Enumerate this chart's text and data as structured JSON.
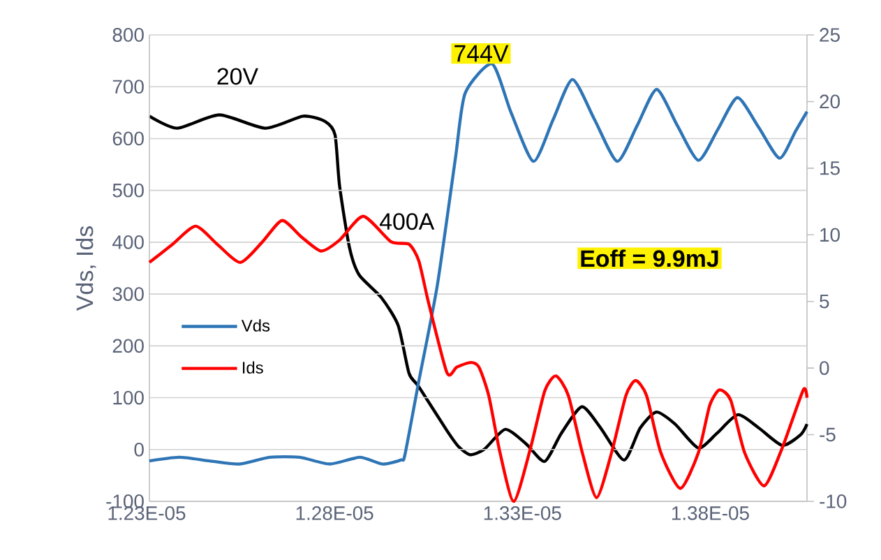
{
  "chart_data": {
    "type": "line",
    "ylabel": "Vds, Ids",
    "xlim": [
      1.23e-05,
      1.405e-05
    ],
    "xticks": [
      {
        "value": 1.23e-05,
        "label": "1.23E-05"
      },
      {
        "value": 1.28e-05,
        "label": "1.28E-05"
      },
      {
        "value": 1.33e-05,
        "label": "1.33E-05"
      },
      {
        "value": 1.38e-05,
        "label": "1.38E-05"
      }
    ],
    "ylim": [
      -100,
      800
    ],
    "yticks": [
      -100,
      0,
      100,
      200,
      300,
      400,
      500,
      600,
      700,
      800
    ],
    "y2lim": [
      -10,
      25
    ],
    "y2ticks": [
      -10,
      -5,
      0,
      5,
      10,
      15,
      20,
      25
    ],
    "grid": "y",
    "legend": "left",
    "series": [
      {
        "name": "Vds",
        "color": "#2e75b6",
        "x": [
          1.23e-05,
          1.238e-05,
          1.246e-05,
          1.254e-05,
          1.262e-05,
          1.27e-05,
          1.278e-05,
          1.286e-05,
          1.292e-05,
          1.297e-05,
          1.298e-05,
          1.3017e-05,
          1.3066e-05,
          1.3114e-05,
          1.314e-05,
          1.3212e-05,
          1.3262e-05,
          1.3322e-05,
          1.3374e-05,
          1.3426e-05,
          1.3485e-05,
          1.3545e-05,
          1.3598e-05,
          1.365e-05,
          1.3705e-05,
          1.3761e-05,
          1.3813e-05,
          1.3865e-05,
          1.3921e-05,
          1.3977e-05,
          1.402e-05,
          1.405e-05
        ],
        "values": [
          -22,
          -15,
          -22,
          -28,
          -15,
          -15,
          -28,
          -15,
          -28,
          -20,
          -10,
          132,
          316,
          560,
          687,
          744,
          651,
          556,
          636,
          714,
          636,
          556,
          625,
          695,
          625,
          558,
          618,
          679,
          622,
          562,
          615,
          652
        ]
      },
      {
        "name": "Ids",
        "color": "#ff0000",
        "x": [
          1.23e-05,
          1.236e-05,
          1.2423e-05,
          1.2482e-05,
          1.2542e-05,
          1.26e-05,
          1.2653e-05,
          1.2705e-05,
          1.2757e-05,
          1.2806e-05,
          1.2869e-05,
          1.2943e-05,
          1.2991e-05,
          1.3017e-05,
          1.3043e-05,
          1.3092e-05,
          1.3118e-05,
          1.3155e-05,
          1.3177e-05,
          1.3203e-05,
          1.3233e-05,
          1.327e-05,
          1.3315e-05,
          1.3352e-05,
          1.3382e-05,
          1.3415e-05,
          1.3452e-05,
          1.349e-05,
          1.353e-05,
          1.3568e-05,
          1.3594e-05,
          1.3623e-05,
          1.3661e-05,
          1.3713e-05,
          1.3761e-05,
          1.3791e-05,
          1.3817e-05,
          1.3847e-05,
          1.3884e-05,
          1.3936e-05,
          1.3984e-05,
          1.404e-05,
          1.405e-05
        ],
        "values": [
          361,
          395,
          431,
          395,
          361,
          400,
          442,
          410,
          383,
          404,
          450,
          401,
          396,
          364,
          283,
          148,
          159,
          168,
          159,
          104,
          -6,
          -100,
          5,
          113,
          142,
          104,
          -6,
          -93,
          -6,
          104,
          133,
          104,
          -6,
          -75,
          -6,
          85,
          115,
          95,
          -6,
          -70,
          3,
          115,
          100
        ]
      },
      {
        "color": "#000000",
        "axis": "y2",
        "x": [
          1.23e-05,
          1.2374e-05,
          1.2486e-05,
          1.2609e-05,
          1.2709e-05,
          1.2768e-05,
          1.2794e-05,
          1.2806e-05,
          1.2832e-05,
          1.2858e-05,
          1.2917e-05,
          1.2962e-05,
          1.2991e-05,
          1.3017e-05,
          1.3092e-05,
          1.3123e-05,
          1.3154e-05,
          1.3191e-05,
          1.3247e-05,
          1.3303e-05,
          1.3352e-05,
          1.3396e-05,
          1.3451e-05,
          1.3501e-05,
          1.3563e-05,
          1.3606e-05,
          1.3649e-05,
          1.3699e-05,
          1.3761e-05,
          1.381e-05,
          1.3866e-05,
          1.3922e-05,
          1.3984e-05,
          1.4033e-05,
          1.405e-05
        ],
        "values": [
          18.9,
          18.0,
          19.0,
          18.0,
          18.9,
          18.5,
          17.5,
          13.7,
          9.1,
          7.0,
          5.3,
          3.2,
          -0.4,
          -1.4,
          -4.7,
          -5.9,
          -6.5,
          -6.1,
          -4.6,
          -5.7,
          -7.0,
          -4.9,
          -2.9,
          -4.5,
          -6.9,
          -4.5,
          -3.3,
          -4.2,
          -6.0,
          -4.9,
          -3.5,
          -4.5,
          -5.8,
          -5.0,
          -4.2
        ]
      }
    ],
    "annotations": [
      "20V",
      "400A",
      {
        "text": "744V",
        "x": 1.3212e-05,
        "y": 744
      },
      "Eoff = 9.9mJ"
    ]
  }
}
